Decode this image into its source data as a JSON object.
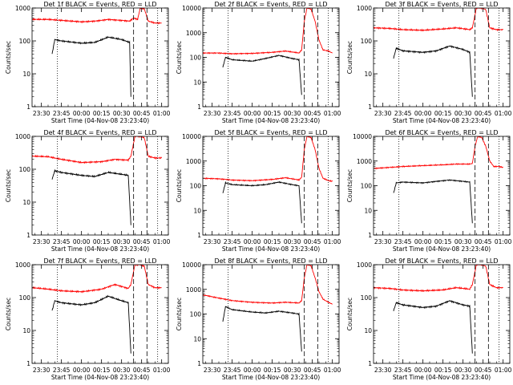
{
  "chart_data": [
    {
      "type": "line",
      "title": "Det 1f BLACK = Events, RED = LLD",
      "xlabel": "Start Time (04-Nov-08 23:23:40)",
      "ylabel": "Counts/sec",
      "yscale": "log",
      "ylim": [
        1,
        1000
      ],
      "yticks": [
        "1",
        "10",
        "100",
        "1000"
      ],
      "xlim": [
        "23:23",
        "01:05"
      ],
      "xticks": [
        "23:30",
        "23:45",
        "00:00",
        "00:15",
        "00:30",
        "00:45",
        "01:00"
      ],
      "vlines": [
        {
          "time": "23:42",
          "style": "dotted"
        },
        {
          "time": "00:39",
          "style": "dashed"
        },
        {
          "time": "00:49",
          "style": "dashed"
        },
        {
          "time": "00:57",
          "style": "dotted"
        }
      ],
      "series": [
        {
          "color": "#ff0000",
          "x": [
            "23:23",
            "23:35",
            "23:45",
            "00:00",
            "00:10",
            "00:20",
            "00:30",
            "00:36",
            "00:39",
            "00:42",
            "00:44",
            "00:47",
            "00:50",
            "00:55",
            "01:00"
          ],
          "values": [
            450,
            450,
            420,
            380,
            400,
            450,
            420,
            400,
            500,
            450,
            1000,
            950,
            400,
            350,
            350
          ]
        },
        {
          "color": "#000000",
          "x": [
            "23:38",
            "23:40",
            "23:45",
            "00:00",
            "00:10",
            "00:20",
            "00:30",
            "00:36",
            "00:37"
          ],
          "values": [
            40,
            110,
            100,
            85,
            90,
            130,
            110,
            90,
            2
          ]
        }
      ],
      "ylabel_dummy": ""
    },
    {
      "type": "line",
      "title": "Det 2f BLACK = Events, RED = LLD",
      "xlabel": "Start Time (04-Nov-08 23:23:40)",
      "ylabel": "Counts/sec",
      "yscale": "log",
      "ylim": [
        1,
        10000
      ],
      "yticks": [
        "1",
        "10",
        "100",
        "1000",
        "10000"
      ],
      "xlim": [
        "23:23",
        "01:05"
      ],
      "xticks": [
        "23:30",
        "23:45",
        "00:00",
        "00:15",
        "00:30",
        "00:45",
        "01:00"
      ],
      "vlines": [
        {
          "time": "23:42",
          "style": "dotted"
        },
        {
          "time": "00:39",
          "style": "dashed"
        },
        {
          "time": "00:49",
          "style": "dashed"
        },
        {
          "time": "00:57",
          "style": "dotted"
        }
      ],
      "series": [
        {
          "color": "#ff0000",
          "x": [
            "23:23",
            "23:35",
            "23:45",
            "00:00",
            "00:15",
            "00:25",
            "00:35",
            "00:37",
            "00:39",
            "00:41",
            "00:44",
            "00:47",
            "00:50",
            "00:53",
            "00:57",
            "01:00"
          ],
          "values": [
            150,
            150,
            140,
            145,
            160,
            180,
            150,
            200,
            3000,
            10000,
            9000,
            3000,
            500,
            200,
            180,
            150
          ]
        },
        {
          "color": "#000000",
          "x": [
            "23:38",
            "23:40",
            "23:45",
            "00:00",
            "00:10",
            "00:20",
            "00:30",
            "00:35",
            "00:37"
          ],
          "values": [
            40,
            100,
            80,
            70,
            90,
            120,
            90,
            80,
            3
          ]
        }
      ]
    },
    {
      "type": "line",
      "title": "Det 3f BLACK = Events, RED = LLD",
      "xlabel": "Start Time (04-Nov-08 23:23:40)",
      "ylabel": "Counts/sec",
      "yscale": "log",
      "ylim": [
        1,
        1000
      ],
      "yticks": [
        "1",
        "10",
        "100",
        "1000"
      ],
      "xlim": [
        "23:23",
        "01:05"
      ],
      "xticks": [
        "23:30",
        "23:45",
        "00:00",
        "00:15",
        "00:30",
        "00:45",
        "01:00"
      ],
      "vlines": [
        {
          "time": "23:42",
          "style": "dotted"
        },
        {
          "time": "00:39",
          "style": "dashed"
        },
        {
          "time": "00:49",
          "style": "dashed"
        },
        {
          "time": "00:57",
          "style": "dotted"
        }
      ],
      "series": [
        {
          "color": "#ff0000",
          "x": [
            "23:23",
            "23:35",
            "23:45",
            "00:00",
            "00:15",
            "00:25",
            "00:35",
            "00:37",
            "00:40",
            "00:44",
            "00:47",
            "00:50",
            "00:55",
            "01:00"
          ],
          "values": [
            250,
            240,
            220,
            210,
            230,
            250,
            220,
            250,
            1000,
            1000,
            900,
            250,
            220,
            220
          ]
        },
        {
          "color": "#000000",
          "x": [
            "23:38",
            "23:40",
            "23:45",
            "00:00",
            "00:10",
            "00:20",
            "00:30",
            "00:35",
            "00:37"
          ],
          "values": [
            30,
            60,
            50,
            45,
            50,
            70,
            55,
            45,
            2
          ]
        }
      ]
    },
    {
      "type": "line",
      "title": "Det 4f BLACK = Events, RED = LLD",
      "xlabel": "Start Time (04-Nov-08 23:23:40)",
      "ylabel": "Counts/sec",
      "yscale": "log",
      "ylim": [
        1,
        1000
      ],
      "yticks": [
        "1",
        "10",
        "100",
        "1000"
      ],
      "xlim": [
        "23:23",
        "01:05"
      ],
      "xticks": [
        "23:30",
        "23:45",
        "00:00",
        "00:15",
        "00:30",
        "00:45",
        "01:00"
      ],
      "vlines": [
        {
          "time": "23:42",
          "style": "dotted"
        },
        {
          "time": "00:39",
          "style": "dashed"
        },
        {
          "time": "00:49",
          "style": "dashed"
        },
        {
          "time": "00:57",
          "style": "dotted"
        }
      ],
      "series": [
        {
          "color": "#ff0000",
          "x": [
            "23:23",
            "23:35",
            "23:45",
            "00:00",
            "00:15",
            "00:25",
            "00:35",
            "00:37",
            "00:40",
            "00:44",
            "00:47",
            "00:50",
            "00:55",
            "01:00"
          ],
          "values": [
            250,
            240,
            200,
            160,
            170,
            200,
            190,
            250,
            1000,
            1000,
            900,
            250,
            220,
            220
          ]
        },
        {
          "color": "#000000",
          "x": [
            "23:38",
            "23:40",
            "23:45",
            "00:00",
            "00:10",
            "00:20",
            "00:30",
            "00:35",
            "00:37"
          ],
          "values": [
            50,
            90,
            80,
            65,
            60,
            80,
            70,
            65,
            2
          ]
        }
      ]
    },
    {
      "type": "line",
      "title": "Det 5f BLACK = Events, RED = LLD",
      "xlabel": "Start Time (04-Nov-08 23:23:40)",
      "ylabel": "Counts/sec",
      "yscale": "log",
      "ylim": [
        1,
        10000
      ],
      "yticks": [
        "1",
        "10",
        "100",
        "1000",
        "10000"
      ],
      "xlim": [
        "23:23",
        "01:05"
      ],
      "xticks": [
        "23:30",
        "23:45",
        "00:00",
        "00:15",
        "00:30",
        "00:45",
        "01:00"
      ],
      "vlines": [
        {
          "time": "23:42",
          "style": "dotted"
        },
        {
          "time": "00:39",
          "style": "dashed"
        },
        {
          "time": "00:49",
          "style": "dashed"
        },
        {
          "time": "00:57",
          "style": "dotted"
        }
      ],
      "series": [
        {
          "color": "#ff0000",
          "x": [
            "23:23",
            "23:35",
            "23:45",
            "00:00",
            "00:15",
            "00:25",
            "00:35",
            "00:37",
            "00:39",
            "00:41",
            "00:44",
            "00:47",
            "00:50",
            "00:53",
            "00:57",
            "01:00"
          ],
          "values": [
            200,
            190,
            170,
            160,
            180,
            210,
            170,
            220,
            3000,
            10000,
            9000,
            3000,
            500,
            200,
            160,
            150
          ]
        },
        {
          "color": "#000000",
          "x": [
            "23:38",
            "23:40",
            "23:45",
            "00:00",
            "00:10",
            "00:20",
            "00:30",
            "00:35",
            "00:37"
          ],
          "values": [
            50,
            130,
            110,
            100,
            110,
            140,
            110,
            100,
            3
          ]
        }
      ]
    },
    {
      "type": "line",
      "title": "Det 6f BLACK = Events, RED = LLD",
      "xlabel": "Start Time (04-Nov-08 23:23:40)",
      "ylabel": "Counts/sec",
      "yscale": "log",
      "ylim": [
        1,
        10000
      ],
      "yticks": [
        "1",
        "10",
        "100",
        "1000",
        "10000"
      ],
      "xlim": [
        "23:23",
        "01:05"
      ],
      "xticks": [
        "23:30",
        "23:45",
        "00:00",
        "00:15",
        "00:30",
        "00:45",
        "01:00"
      ],
      "vlines": [
        {
          "time": "23:42",
          "style": "dotted"
        },
        {
          "time": "00:39",
          "style": "dashed"
        },
        {
          "time": "00:49",
          "style": "dashed"
        },
        {
          "time": "00:57",
          "style": "dotted"
        }
      ],
      "series": [
        {
          "color": "#ff0000",
          "x": [
            "23:23",
            "23:35",
            "23:45",
            "00:00",
            "00:15",
            "00:25",
            "00:35",
            "00:37",
            "00:39",
            "00:41",
            "00:44",
            "00:47",
            "00:50",
            "00:53",
            "00:57",
            "01:00"
          ],
          "values": [
            500,
            550,
            600,
            650,
            700,
            750,
            750,
            800,
            4000,
            10000,
            9000,
            4000,
            1000,
            600,
            600,
            550
          ]
        },
        {
          "color": "#000000",
          "x": [
            "23:38",
            "23:40",
            "23:45",
            "00:00",
            "00:10",
            "00:20",
            "00:30",
            "00:35",
            "00:37"
          ],
          "values": [
            50,
            130,
            140,
            130,
            150,
            170,
            150,
            140,
            3
          ]
        }
      ]
    },
    {
      "type": "line",
      "title": "Det 7f BLACK = Events, RED = LLD",
      "xlabel": "Start Time (04-Nov-08 23:23:40)",
      "ylabel": "Counts/sec",
      "yscale": "log",
      "ylim": [
        1,
        1000
      ],
      "yticks": [
        "1",
        "10",
        "100",
        "1000"
      ],
      "xlim": [
        "23:23",
        "01:05"
      ],
      "xticks": [
        "23:30",
        "23:45",
        "00:00",
        "00:15",
        "00:30",
        "00:45",
        "01:00"
      ],
      "vlines": [
        {
          "time": "23:42",
          "style": "dotted"
        },
        {
          "time": "00:39",
          "style": "dashed"
        },
        {
          "time": "00:49",
          "style": "dashed"
        },
        {
          "time": "00:57",
          "style": "dotted"
        }
      ],
      "series": [
        {
          "color": "#ff0000",
          "x": [
            "23:23",
            "23:35",
            "23:45",
            "00:00",
            "00:15",
            "00:25",
            "00:35",
            "00:37",
            "00:40",
            "00:44",
            "00:47",
            "00:50",
            "00:55",
            "01:00"
          ],
          "values": [
            200,
            180,
            160,
            150,
            180,
            250,
            190,
            250,
            1000,
            1000,
            900,
            250,
            200,
            200
          ]
        },
        {
          "color": "#000000",
          "x": [
            "23:38",
            "23:40",
            "23:45",
            "00:00",
            "00:10",
            "00:20",
            "00:30",
            "00:35",
            "00:37"
          ],
          "values": [
            40,
            80,
            70,
            60,
            70,
            110,
            80,
            70,
            2
          ]
        }
      ]
    },
    {
      "type": "line",
      "title": "Det 8f BLACK = Events, RED = LLD",
      "xlabel": "Start Time (04-Nov-08 23:23:40)",
      "ylabel": "Counts/sec",
      "yscale": "log",
      "ylim": [
        1,
        10000
      ],
      "yticks": [
        "1",
        "10",
        "100",
        "1000",
        "10000"
      ],
      "xlim": [
        "23:23",
        "01:05"
      ],
      "xticks": [
        "23:30",
        "23:45",
        "00:00",
        "00:15",
        "00:30",
        "00:45",
        "01:00"
      ],
      "vlines": [
        {
          "time": "23:42",
          "style": "dotted"
        },
        {
          "time": "00:39",
          "style": "dashed"
        },
        {
          "time": "00:49",
          "style": "dashed"
        },
        {
          "time": "00:57",
          "style": "dotted"
        }
      ],
      "series": [
        {
          "color": "#ff0000",
          "x": [
            "23:23",
            "23:30",
            "23:45",
            "00:00",
            "00:15",
            "00:25",
            "00:35",
            "00:37",
            "00:39",
            "00:41",
            "00:44",
            "00:47",
            "00:50",
            "00:53",
            "00:57",
            "01:00"
          ],
          "values": [
            600,
            500,
            350,
            300,
            280,
            300,
            280,
            350,
            3000,
            10000,
            9000,
            3000,
            800,
            400,
            300,
            250
          ]
        },
        {
          "color": "#000000",
          "x": [
            "23:38",
            "23:40",
            "23:45",
            "00:00",
            "00:10",
            "00:20",
            "00:30",
            "00:35",
            "00:37"
          ],
          "values": [
            50,
            200,
            150,
            120,
            110,
            130,
            110,
            100,
            3
          ]
        }
      ]
    },
    {
      "type": "line",
      "title": "Det 9f BLACK = Events, RED = LLD",
      "xlabel": "Start Time (04-Nov-08 23:23:40)",
      "ylabel": "Counts/sec",
      "yscale": "log",
      "ylim": [
        1,
        1000
      ],
      "yticks": [
        "1",
        "10",
        "100",
        "1000"
      ],
      "xlim": [
        "23:23",
        "01:05"
      ],
      "xticks": [
        "23:30",
        "23:45",
        "00:00",
        "00:15",
        "00:30",
        "00:45",
        "01:00"
      ],
      "vlines": [
        {
          "time": "23:42",
          "style": "dotted"
        },
        {
          "time": "00:39",
          "style": "dashed"
        },
        {
          "time": "00:49",
          "style": "dashed"
        },
        {
          "time": "00:57",
          "style": "dotted"
        }
      ],
      "series": [
        {
          "color": "#ff0000",
          "x": [
            "23:23",
            "23:35",
            "23:45",
            "00:00",
            "00:15",
            "00:25",
            "00:35",
            "00:37",
            "00:40",
            "00:44",
            "00:47",
            "00:50",
            "00:55",
            "01:00"
          ],
          "values": [
            200,
            190,
            170,
            160,
            170,
            200,
            180,
            250,
            1000,
            1000,
            900,
            250,
            200,
            200
          ]
        },
        {
          "color": "#000000",
          "x": [
            "23:38",
            "23:40",
            "23:45",
            "00:00",
            "00:10",
            "00:20",
            "00:30",
            "00:35",
            "00:37"
          ],
          "values": [
            40,
            70,
            60,
            50,
            55,
            80,
            60,
            55,
            2
          ]
        }
      ]
    }
  ]
}
